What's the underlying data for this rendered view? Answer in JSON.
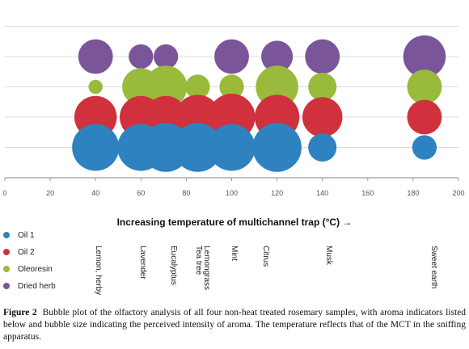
{
  "chart_data": {
    "type": "bubble",
    "xlabel": "Increasing temperature of multichannel trap (°C) →",
    "xlim": [
      0,
      200
    ],
    "xticks": [
      0,
      20,
      40,
      60,
      80,
      100,
      120,
      140,
      160,
      180,
      200
    ],
    "grid": "horizontal",
    "legend_position": "left-below-axis",
    "series": [
      {
        "name": "Dried herb",
        "color": "#7b559a",
        "row": 1,
        "points": [
          {
            "x": 40,
            "size": 6
          },
          {
            "x": 60,
            "size": 3
          },
          {
            "x": 71,
            "size": 3
          },
          {
            "x": 100,
            "size": 6
          },
          {
            "x": 120,
            "size": 5
          },
          {
            "x": 140,
            "size": 6
          },
          {
            "x": 185,
            "size": 9
          }
        ]
      },
      {
        "name": "Oleoresin",
        "color": "#9aba3b",
        "row": 2,
        "points": [
          {
            "x": 40,
            "size": 1
          },
          {
            "x": 60,
            "size": 7
          },
          {
            "x": 71,
            "size": 9
          },
          {
            "x": 85,
            "size": 3
          },
          {
            "x": 100,
            "size": 3
          },
          {
            "x": 120,
            "size": 9
          },
          {
            "x": 140,
            "size": 4
          },
          {
            "x": 185,
            "size": 6
          }
        ]
      },
      {
        "name": "Oil 2",
        "color": "#d0313c",
        "row": 3,
        "points": [
          {
            "x": 40,
            "size": 9
          },
          {
            "x": 60,
            "size": 9
          },
          {
            "x": 71,
            "size": 9
          },
          {
            "x": 85,
            "size": 10
          },
          {
            "x": 100,
            "size": 11
          },
          {
            "x": 120,
            "size": 10
          },
          {
            "x": 140,
            "size": 8
          },
          {
            "x": 185,
            "size": 6
          }
        ]
      },
      {
        "name": "Oil 1",
        "color": "#2e82bf",
        "row": 4,
        "points": [
          {
            "x": 40,
            "size": 11
          },
          {
            "x": 60,
            "size": 11
          },
          {
            "x": 71,
            "size": 12
          },
          {
            "x": 85,
            "size": 12
          },
          {
            "x": 100,
            "size": 11
          },
          {
            "x": 120,
            "size": 12
          },
          {
            "x": 140,
            "size": 4
          },
          {
            "x": 185,
            "size": 3
          }
        ]
      }
    ],
    "aroma_indicators": [
      {
        "x": 40,
        "label": "Lemon, herby"
      },
      {
        "x": 60,
        "label": "Lavender"
      },
      {
        "x": 71,
        "label": "Eucalyptus"
      },
      {
        "x": 85,
        "label": "Lemongrass Tea tree"
      },
      {
        "x": 100,
        "label": "Mint"
      },
      {
        "x": 120,
        "label": "Citrus"
      },
      {
        "x": 140,
        "label": "Musk"
      },
      {
        "x": 185,
        "label": "Sweet earth"
      }
    ]
  },
  "legend": [
    {
      "label": "Oil 1",
      "color": "#2e82bf"
    },
    {
      "label": "Oil 2",
      "color": "#d0313c"
    },
    {
      "label": "Oleoresin",
      "color": "#9aba3b"
    },
    {
      "label": "Dried herb",
      "color": "#7b559a"
    }
  ],
  "caption": {
    "label": "Figure 2",
    "text": "Bubble plot of the olfactory analysis of all four non-heat treated rosemary samples, with aroma indicators listed below and bubble size indicating the perceived intensity of aroma. The temperature reflects that of the MCT in the sniffing apparatus."
  }
}
